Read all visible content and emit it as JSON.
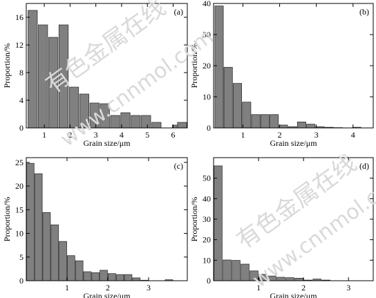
{
  "watermark": {
    "top_cn": "有色金属在线",
    "top_url": "www.cnnmol.com",
    "bottom_cn": "有色金属在线",
    "bottom_url": "www.cnnmol.com"
  },
  "chart_data": [
    {
      "type": "bar",
      "panel_label": "(a)",
      "xlabel": "Grain size/μm",
      "ylabel": "Proportion/%",
      "xlim": [
        0.3,
        6.55
      ],
      "ylim": [
        0,
        18
      ],
      "xticks": [
        1,
        2,
        3,
        4,
        5,
        6
      ],
      "yticks": [
        0,
        4,
        8,
        12,
        16
      ],
      "bar_width": 0.36,
      "bar_color": "#808080",
      "x": [
        0.55,
        0.95,
        1.35,
        1.75,
        2.15,
        2.55,
        2.95,
        3.35,
        3.75,
        4.15,
        4.55,
        4.95,
        5.35,
        5.75,
        6.15,
        6.35
      ],
      "values": [
        17.0,
        14.9,
        13.1,
        14.9,
        5.9,
        4.9,
        3.6,
        3.5,
        1.8,
        2.2,
        1.8,
        1.8,
        0.8,
        0.0,
        0.4,
        0.8
      ]
    },
    {
      "type": "bar",
      "panel_label": "(b)",
      "xlabel": "Grain size/μm",
      "ylabel": "Proportion/%",
      "xlim": [
        0.2,
        4.55
      ],
      "ylim": [
        0,
        40
      ],
      "xticks": [
        1,
        2,
        3,
        4
      ],
      "yticks": [
        0,
        10,
        20,
        30,
        40
      ],
      "bar_width": 0.23,
      "bar_color": "#808080",
      "x": [
        0.35,
        0.6,
        0.85,
        1.1,
        1.35,
        1.6,
        1.85,
        2.1,
        2.35,
        2.6,
        2.85,
        3.1,
        3.35,
        3.6,
        4.1
      ],
      "values": [
        39.2,
        19.5,
        14.3,
        8.3,
        4.3,
        4.3,
        4.3,
        0.9,
        0.4,
        1.9,
        1.2,
        0.4,
        0.2,
        0.1,
        0.2
      ]
    },
    {
      "type": "bar",
      "panel_label": "(c)",
      "xlabel": "Grain size/μm",
      "ylabel": "Proportion/%",
      "xlim": [
        0.0,
        3.95
      ],
      "ylim": [
        0,
        26
      ],
      "xticks": [
        1,
        2,
        3
      ],
      "yticks": [
        0,
        5,
        10,
        15,
        20,
        25
      ],
      "bar_width": 0.185,
      "bar_color": "#808080",
      "x": [
        0.1,
        0.3,
        0.5,
        0.7,
        0.9,
        1.1,
        1.3,
        1.5,
        1.7,
        1.9,
        2.1,
        2.3,
        2.5,
        2.7,
        2.9,
        3.1,
        3.3,
        3.5
      ],
      "values": [
        24.8,
        22.6,
        14.4,
        11.8,
        8.3,
        5.3,
        4.2,
        1.9,
        1.7,
        2.2,
        1.5,
        1.3,
        1.3,
        0.6,
        0.1,
        0.0,
        0.0,
        0.2
      ]
    },
    {
      "type": "bar",
      "panel_label": "(d)",
      "xlabel": "Grain size/μm",
      "ylabel": "Proportion/%",
      "xlim": [
        0.0,
        3.55
      ],
      "ylim": [
        0,
        60
      ],
      "xticks": [
        1,
        2,
        3
      ],
      "yticks": [
        0,
        10,
        20,
        30,
        40,
        50
      ],
      "bar_width": 0.18,
      "bar_color": "#808080",
      "x": [
        0.1,
        0.3,
        0.5,
        0.7,
        0.9,
        1.1,
        1.3,
        1.5,
        1.7,
        1.9,
        2.1,
        2.3,
        2.5,
        2.7,
        2.9,
        3.1,
        3.3
      ],
      "values": [
        56.0,
        10.1,
        9.9,
        8.1,
        4.8,
        3.1,
        2.3,
        1.7,
        1.5,
        1.2,
        0.3,
        0.8,
        0.3,
        0.0,
        0.0,
        0.0,
        0.0
      ]
    }
  ]
}
